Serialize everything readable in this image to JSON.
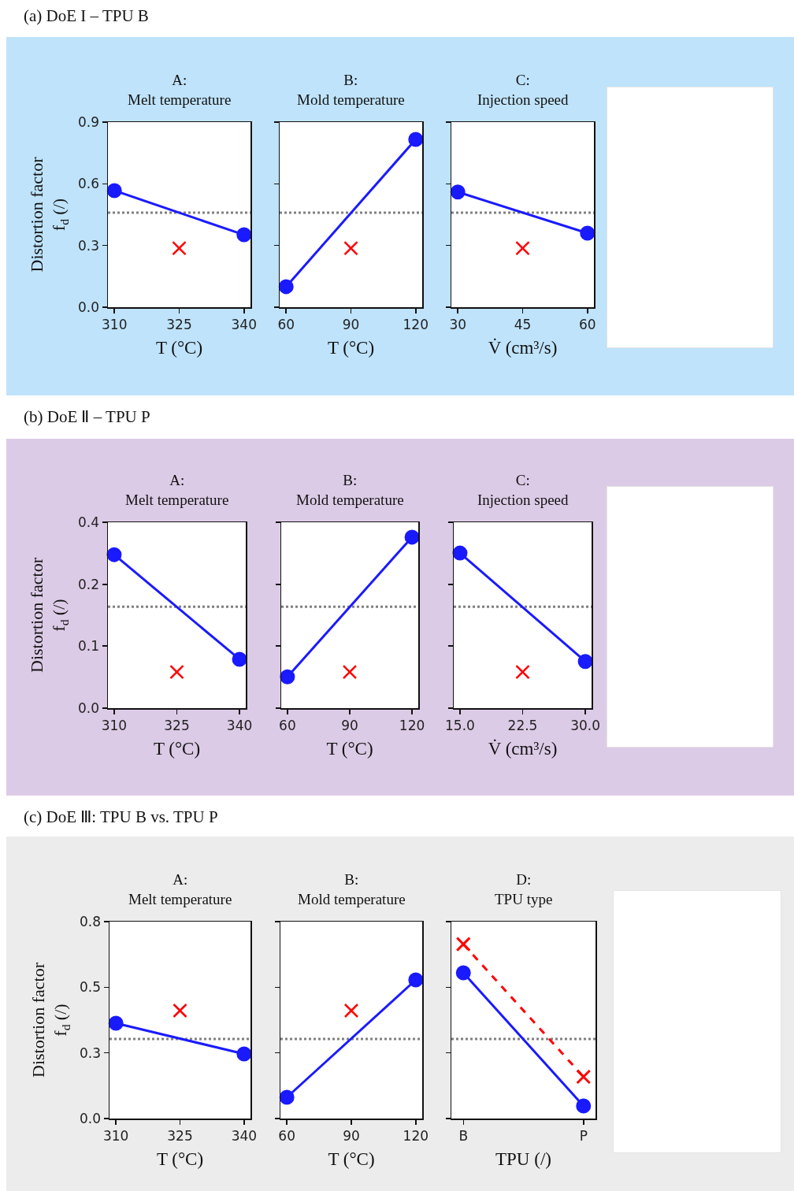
{
  "chart_data": [
    {
      "type": "line",
      "title": "A:\nMelt temperature",
      "xlabel": "T (°C)",
      "ylabel": "Distortion factor\nf$_{d}$ (/)",
      "annotations": [
        "(a) DoE I – TPU B"
      ],
      "x": [
        310,
        340
      ],
      "xlim": [
        308.5,
        341.5
      ],
      "xticks": [
        310,
        325,
        340
      ],
      "ylim": [
        0,
        0.9
      ],
      "yticks": [
        {
          "value": 0,
          "label": "0.0"
        },
        0.3,
        0.6,
        0.9
      ],
      "series": [
        {
          "type": "line",
          "color": "#1a1aff",
          "marker": "circle",
          "values": [
            0.567,
            0.352
          ]
        },
        {
          "type": "scatter",
          "color": "#ff0000",
          "marker": "cross",
          "x": [
            325
          ],
          "values": [
            0.287
          ]
        }
      ],
      "ref_lines": [
        {
          "axis": "y",
          "value": 0.46,
          "color": "#808080",
          "line_style": "dotted"
        }
      ]
    },
    {
      "type": "line",
      "title": "B:\nMold temperature",
      "xlabel": "T (°C)",
      "x": [
        60,
        120
      ],
      "xlim": [
        57,
        123
      ],
      "xticks": [
        60,
        90,
        120
      ],
      "ylim": [
        0,
        0.9
      ],
      "yticks": [
        {
          "value": 0,
          "label": null
        },
        {
          "value": 0.3,
          "label": null
        },
        {
          "value": 0.6,
          "label": null
        },
        {
          "value": 0.9,
          "label": null
        }
      ],
      "tick_labels": "x",
      "series": [
        {
          "type": "line",
          "color": "#1a1aff",
          "marker": "circle",
          "values": [
            0.1,
            0.816
          ]
        },
        {
          "type": "scatter",
          "color": "#ff0000",
          "marker": "cross",
          "x": [
            90
          ],
          "values": [
            0.287
          ]
        }
      ],
      "ref_lines": [
        {
          "axis": "y",
          "value": 0.46,
          "color": "#808080",
          "line_style": "dotted"
        }
      ]
    },
    {
      "type": "line",
      "title": "C:\nInjection speed",
      "xlabel": "V̇ (cm³/s)",
      "x": [
        30,
        60
      ],
      "xlim": [
        28.5,
        61.5
      ],
      "xticks": [
        30,
        45,
        60
      ],
      "ylim": [
        0,
        0.9
      ],
      "yticks": [
        {
          "value": 0,
          "label": null
        },
        {
          "value": 0.3,
          "label": null
        },
        {
          "value": 0.6,
          "label": null
        },
        {
          "value": 0.9,
          "label": null
        }
      ],
      "tick_labels": "x",
      "series": [
        {
          "type": "line",
          "color": "#1a1aff",
          "marker": "circle",
          "values": [
            0.56,
            0.36
          ]
        },
        {
          "type": "scatter",
          "color": "#ff0000",
          "marker": "cross",
          "x": [
            45
          ],
          "values": [
            0.287
          ]
        }
      ],
      "ref_lines": [
        {
          "axis": "y",
          "value": 0.46,
          "color": "#808080",
          "line_style": "dotted"
        }
      ]
    },
    {
      "type": "line",
      "title": "A:\nMelt temperature",
      "xlabel": "T (°C)",
      "ylabel": "Distortion factor\nf$_{d}$ (/)",
      "annotations": [
        "(b) DoE Ⅱ – TPU P"
      ],
      "x": [
        310,
        340
      ],
      "xlim": [
        308.5,
        341.5
      ],
      "xticks": [
        310,
        325,
        340
      ],
      "ylim": [
        0,
        0.35
      ],
      "yticks": [
        {
          "value": 0,
          "label": "0.0"
        },
        {
          "value": 0.117,
          "label": "0.1"
        },
        {
          "value": 0.233,
          "label": "0.2"
        },
        {
          "value": 0.35,
          "label": "0.4"
        }
      ],
      "series": [
        {
          "type": "line",
          "color": "#1a1aff",
          "marker": "circle",
          "values": [
            0.289,
            0.092
          ]
        },
        {
          "type": "scatter",
          "color": "#ff0000",
          "marker": "cross",
          "x": [
            325
          ],
          "values": [
            0.068
          ]
        }
      ],
      "ref_lines": [
        {
          "axis": "y",
          "value": 0.191,
          "color": "#808080",
          "line_style": "dotted"
        }
      ]
    },
    {
      "type": "line",
      "title": "B:\nMold temperature",
      "xlabel": "T (°C)",
      "x": [
        60,
        120
      ],
      "xlim": [
        57,
        123
      ],
      "xticks": [
        60,
        90,
        120
      ],
      "ylim": [
        0,
        0.35
      ],
      "yticks": [
        {
          "value": 0,
          "label": null
        },
        {
          "value": 0.117,
          "label": null
        },
        {
          "value": 0.233,
          "label": null
        },
        {
          "value": 0.35,
          "label": null
        }
      ],
      "tick_labels": "x",
      "series": [
        {
          "type": "line",
          "color": "#1a1aff",
          "marker": "circle",
          "values": [
            0.059,
            0.322
          ]
        },
        {
          "type": "scatter",
          "color": "#ff0000",
          "marker": "cross",
          "x": [
            90
          ],
          "values": [
            0.068
          ]
        }
      ],
      "ref_lines": [
        {
          "axis": "y",
          "value": 0.191,
          "color": "#808080",
          "line_style": "dotted"
        }
      ]
    },
    {
      "type": "line",
      "title": "C:\nInjection speed",
      "xlabel": "V̇ (cm³/s)",
      "x": [
        15,
        30
      ],
      "xlim": [
        14.25,
        30.75
      ],
      "xticks": [
        {
          "value": 15,
          "label": "15.0"
        },
        22.5,
        {
          "value": 30,
          "label": "30.0"
        }
      ],
      "ylim": [
        0,
        0.35
      ],
      "yticks": [
        {
          "value": 0,
          "label": null
        },
        {
          "value": 0.117,
          "label": null
        },
        {
          "value": 0.233,
          "label": null
        },
        {
          "value": 0.35,
          "label": null
        }
      ],
      "tick_labels": "x",
      "series": [
        {
          "type": "line",
          "color": "#1a1aff",
          "marker": "circle",
          "values": [
            0.292,
            0.088
          ]
        },
        {
          "type": "scatter",
          "color": "#ff0000",
          "marker": "cross",
          "x": [
            22.5
          ],
          "values": [
            0.068
          ]
        }
      ],
      "ref_lines": [
        {
          "axis": "y",
          "value": 0.191,
          "color": "#808080",
          "line_style": "dotted"
        }
      ]
    },
    {
      "type": "line",
      "title": "A:\nMelt temperature",
      "xlabel": "T (°C)",
      "ylabel": "Distortion factor\nf$_{d}$ (/)",
      "annotations": [
        "(c) DoE Ⅲ:  TPU B vs. TPU P"
      ],
      "x": [
        310,
        340
      ],
      "xlim": [
        308.5,
        341.5
      ],
      "xticks": [
        310,
        325,
        340
      ],
      "ylim": [
        0,
        0.75
      ],
      "yticks": [
        {
          "value": 0,
          "label": "0.0"
        },
        {
          "value": 0.25,
          "label": "0.3"
        },
        0.5,
        {
          "value": 0.75,
          "label": "0.8"
        }
      ],
      "series": [
        {
          "type": "line",
          "color": "#1a1aff",
          "marker": "circle",
          "values": [
            0.363,
            0.246
          ]
        },
        {
          "type": "scatter",
          "color": "#ff0000",
          "marker": "cross",
          "x": [
            325
          ],
          "values": [
            0.411
          ]
        }
      ],
      "ref_lines": [
        {
          "axis": "y",
          "value": 0.303,
          "color": "#808080",
          "line_style": "dotted"
        }
      ]
    },
    {
      "type": "line",
      "title": "B:\nMold temperature",
      "xlabel": "T (°C)",
      "x": [
        60,
        120
      ],
      "xlim": [
        57,
        123
      ],
      "xticks": [
        60,
        90,
        120
      ],
      "ylim": [
        0,
        0.75
      ],
      "yticks": [
        {
          "value": 0,
          "label": null
        },
        {
          "value": 0.25,
          "label": null
        },
        {
          "value": 0.5,
          "label": null
        },
        {
          "value": 0.75,
          "label": null
        }
      ],
      "tick_labels": "x",
      "series": [
        {
          "type": "line",
          "color": "#1a1aff",
          "marker": "circle",
          "values": [
            0.081,
            0.528
          ]
        },
        {
          "type": "scatter",
          "color": "#ff0000",
          "marker": "cross",
          "x": [
            90
          ],
          "values": [
            0.411
          ]
        }
      ],
      "ref_lines": [
        {
          "axis": "y",
          "value": 0.303,
          "color": "#808080",
          "line_style": "dotted"
        }
      ]
    },
    {
      "type": "line",
      "title": "D:\nTPU type",
      "xlabel": "TPU (/)",
      "categories": [
        "B",
        "P"
      ],
      "ylim": [
        0,
        0.75
      ],
      "yticks": [
        {
          "value": 0,
          "label": null
        },
        {
          "value": 0.25,
          "label": null
        },
        {
          "value": 0.5,
          "label": null
        },
        {
          "value": 0.75,
          "label": null
        }
      ],
      "tick_labels": "x",
      "series": [
        {
          "type": "line",
          "color": "#1a1aff",
          "marker": "circle",
          "values": [
            0.555,
            0.048
          ]
        },
        {
          "type": "line",
          "color": "#ff0000",
          "marker": "cross",
          "line_style": "dashed",
          "values": [
            0.664,
            0.159
          ]
        }
      ],
      "ref_lines": [
        {
          "axis": "y",
          "value": 0.303,
          "color": "#808080",
          "line_style": "dotted"
        }
      ]
    }
  ]
}
